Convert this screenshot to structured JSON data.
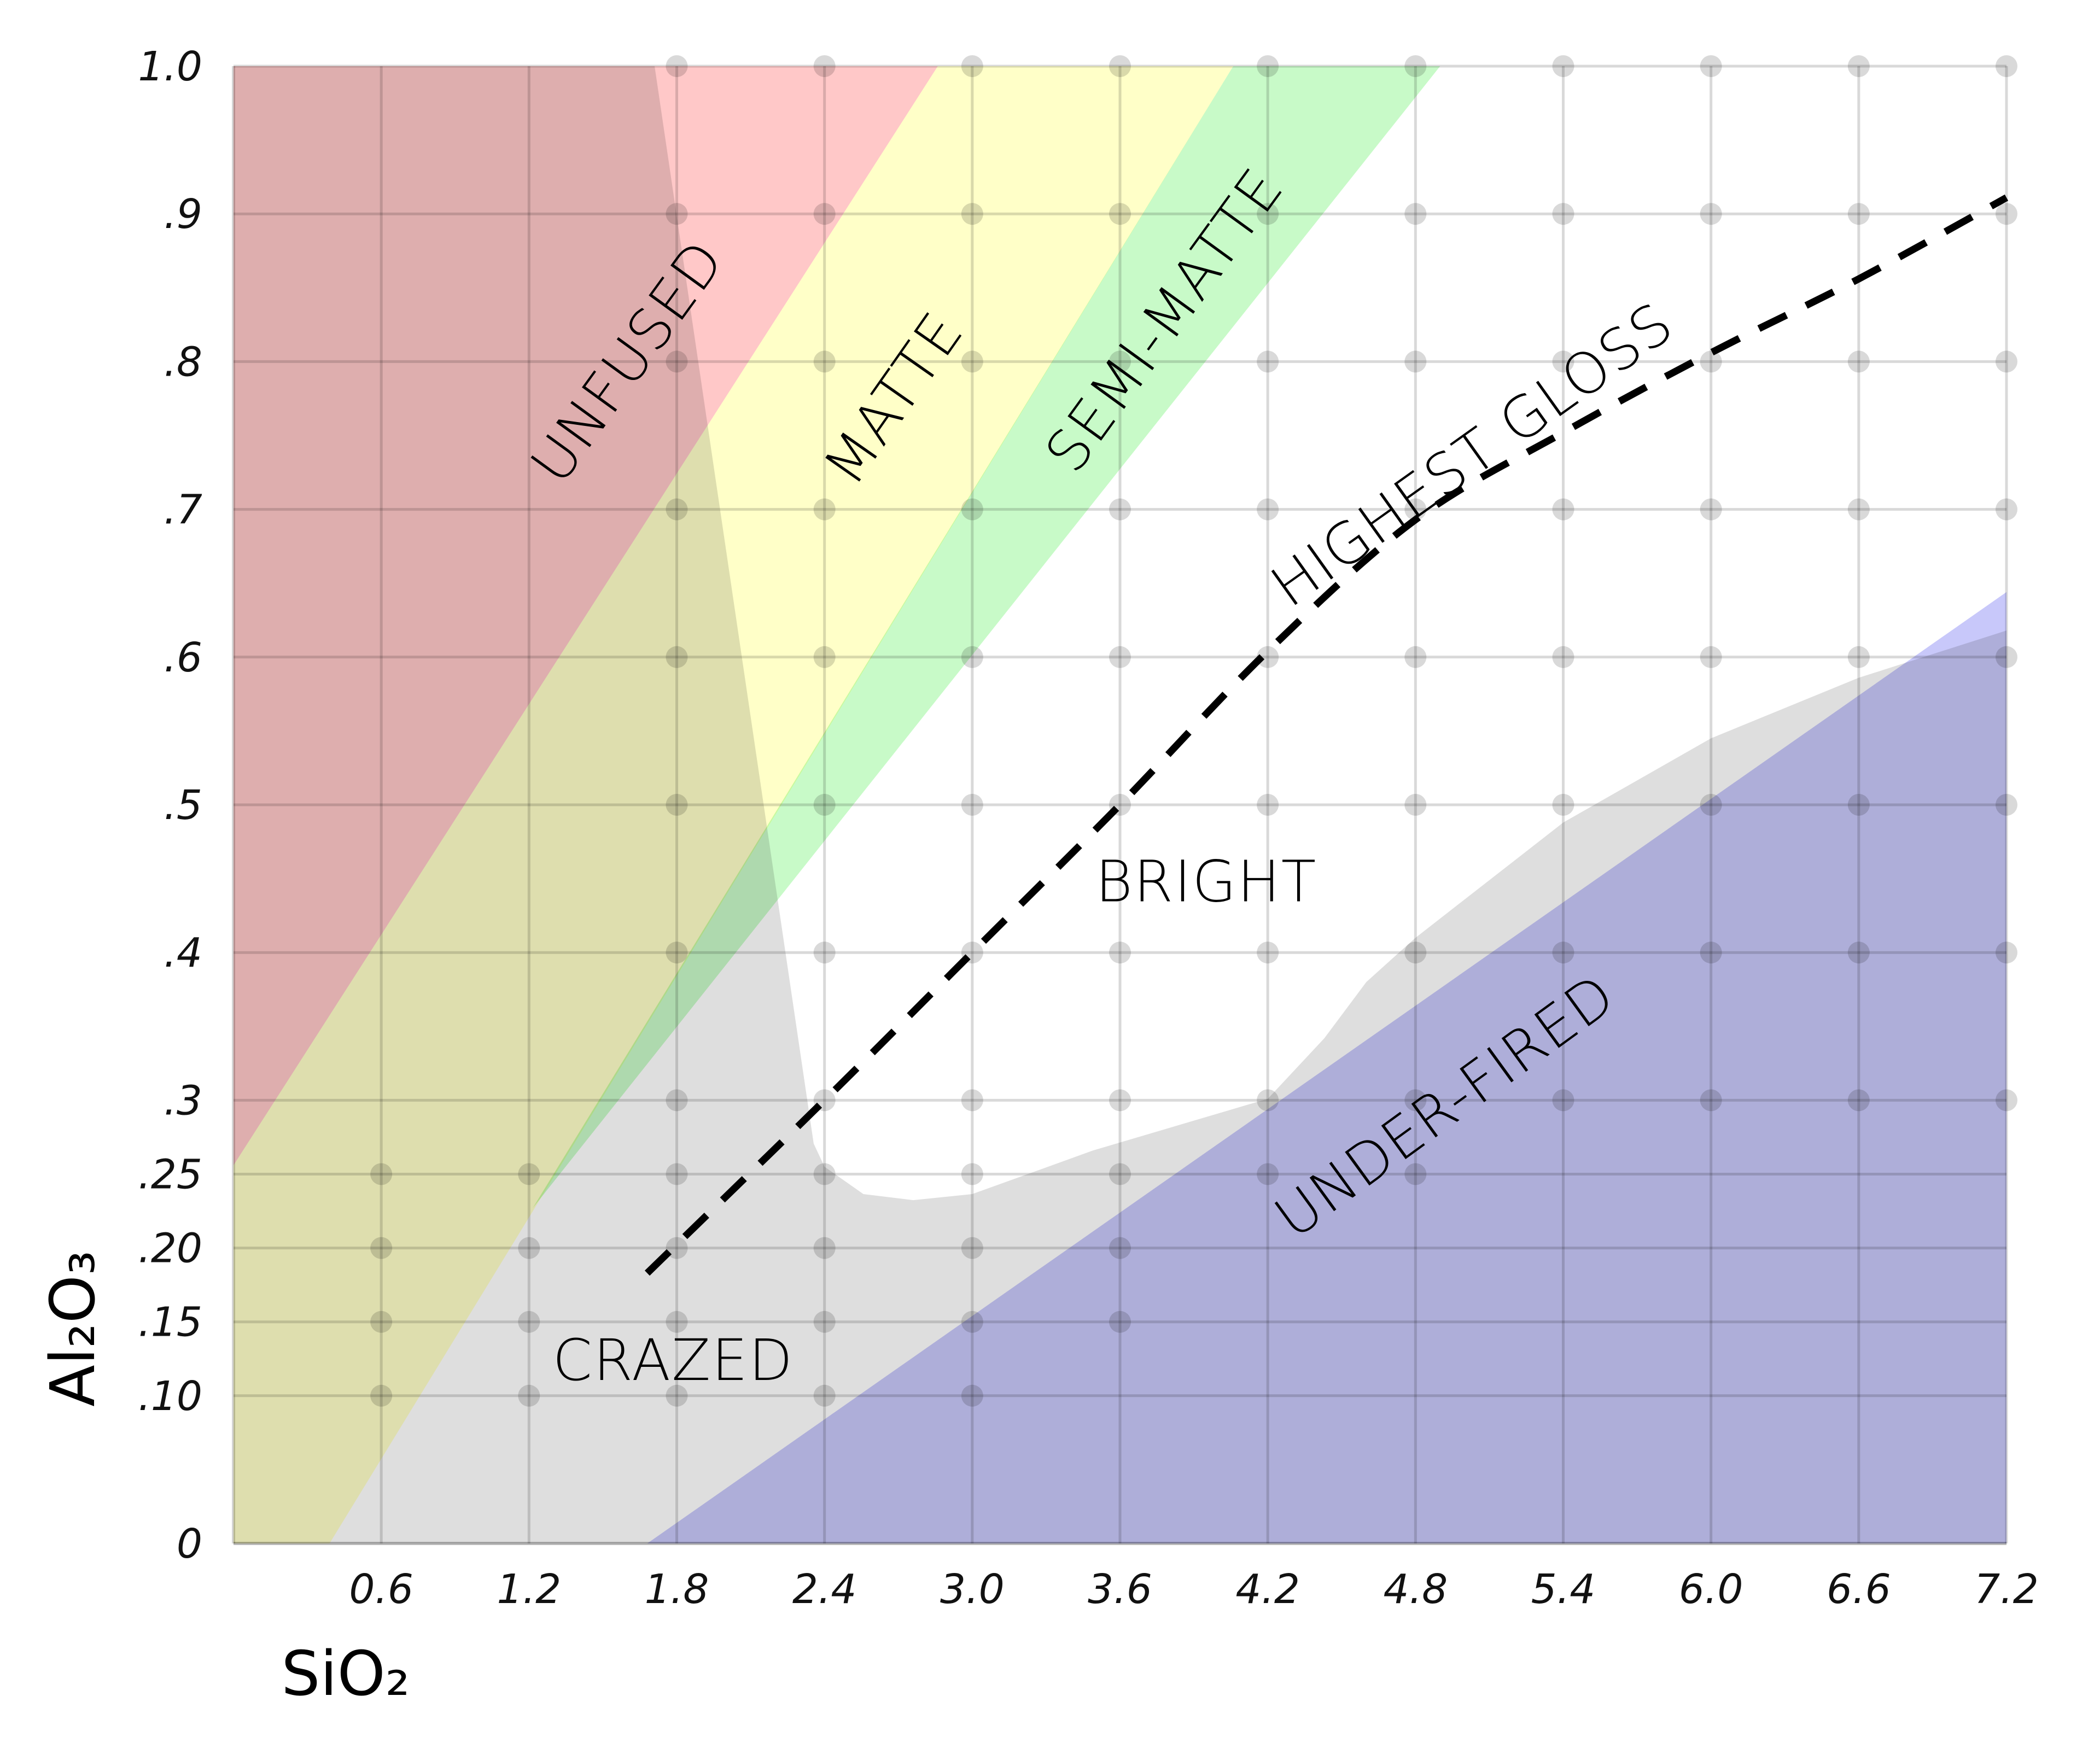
{
  "chart_data": {
    "type": "area",
    "title": "",
    "xlabel": "SiO₂",
    "ylabel": "Al₂O₃",
    "xlim": [
      0,
      7.2
    ],
    "ylim": [
      0,
      1.0
    ],
    "grid": true,
    "legend": null,
    "x_ticks": [
      {
        "value": 0.6,
        "label": "0.6"
      },
      {
        "value": 1.2,
        "label": "1.2"
      },
      {
        "value": 1.8,
        "label": "1.8"
      },
      {
        "value": 2.4,
        "label": "2.4"
      },
      {
        "value": 3.0,
        "label": "3.0"
      },
      {
        "value": 3.6,
        "label": "3.6"
      },
      {
        "value": 4.2,
        "label": "4.2"
      },
      {
        "value": 4.8,
        "label": "4.8"
      },
      {
        "value": 5.4,
        "label": "5.4"
      },
      {
        "value": 6.0,
        "label": "6.0"
      },
      {
        "value": 6.6,
        "label": "6.6"
      },
      {
        "value": 7.2,
        "label": "7.2"
      }
    ],
    "y_ticks": [
      {
        "value": 1.0,
        "label": "1.0"
      },
      {
        "value": 0.9,
        "label": ".9"
      },
      {
        "value": 0.8,
        "label": ".8"
      },
      {
        "value": 0.7,
        "label": ".7"
      },
      {
        "value": 0.6,
        "label": ".6"
      },
      {
        "value": 0.5,
        "label": ".5"
      },
      {
        "value": 0.4,
        "label": ".4"
      },
      {
        "value": 0.3,
        "label": ".3"
      },
      {
        "value": 0.25,
        "label": ".25"
      },
      {
        "value": 0.2,
        "label": ".20"
      },
      {
        "value": 0.15,
        "label": ".15"
      },
      {
        "value": 0.1,
        "label": ".10"
      },
      {
        "value": 0,
        "label": "0"
      }
    ],
    "grid_dots": [
      {
        "y": 1.0,
        "x": [
          1.8,
          2.4,
          3.0,
          3.6,
          4.2,
          4.8,
          5.4,
          6.0,
          6.6,
          7.2
        ]
      },
      {
        "y": 0.9,
        "x": [
          1.8,
          2.4,
          3.0,
          3.6,
          4.2,
          4.8,
          5.4,
          6.0,
          6.6,
          7.2
        ]
      },
      {
        "y": 0.8,
        "x": [
          1.8,
          2.4,
          3.0,
          3.6,
          4.2,
          4.8,
          5.4,
          6.0,
          6.6,
          7.2
        ]
      },
      {
        "y": 0.7,
        "x": [
          1.8,
          2.4,
          3.0,
          3.6,
          4.2,
          4.8,
          5.4,
          6.0,
          6.6,
          7.2
        ]
      },
      {
        "y": 0.6,
        "x": [
          1.8,
          2.4,
          3.0,
          3.6,
          4.2,
          4.8,
          5.4,
          6.0,
          6.6,
          7.2
        ]
      },
      {
        "y": 0.5,
        "x": [
          1.8,
          2.4,
          3.0,
          3.6,
          4.2,
          4.8,
          5.4,
          6.0,
          6.6,
          7.2
        ]
      },
      {
        "y": 0.4,
        "x": [
          1.8,
          2.4,
          3.0,
          3.6,
          4.2,
          4.8,
          5.4,
          6.0,
          6.6,
          7.2
        ]
      },
      {
        "y": 0.3,
        "x": [
          1.8,
          2.4,
          3.0,
          3.6,
          4.2,
          4.8,
          5.4,
          6.0,
          6.6,
          7.2
        ]
      },
      {
        "y": 0.25,
        "x": [
          0.6,
          1.2,
          1.8,
          2.4,
          3.0,
          3.6,
          4.2,
          4.8
        ]
      },
      {
        "y": 0.2,
        "x": [
          0.6,
          1.2,
          1.8,
          2.4,
          3.0,
          3.6
        ]
      },
      {
        "y": 0.15,
        "x": [
          0.6,
          1.2,
          1.8,
          2.4,
          3.0,
          3.6
        ]
      },
      {
        "y": 0.1,
        "x": [
          0.6,
          1.2,
          1.8,
          2.4,
          3.0
        ]
      }
    ],
    "regions": [
      {
        "name": "CRAZED",
        "color": "#000000",
        "opacity": 0.13,
        "points": [
          [
            0,
            0
          ],
          [
            7.2,
            0
          ],
          [
            7.2,
            0.618
          ],
          [
            6.6,
            0.586
          ],
          [
            6.0,
            0.545
          ],
          [
            5.4,
            0.488
          ],
          [
            4.8,
            0.41
          ],
          [
            4.6,
            0.38
          ],
          [
            4.43,
            0.342
          ],
          [
            4.2,
            0.301
          ],
          [
            3.49,
            0.266
          ],
          [
            3.0,
            0.2365
          ],
          [
            2.76,
            0.2324
          ],
          [
            2.558,
            0.2365
          ],
          [
            2.4,
            0.255
          ],
          [
            2.356,
            0.2706
          ],
          [
            1.71,
            1.0
          ],
          [
            0,
            1.0
          ]
        ]
      },
      {
        "name": "UNFUSED",
        "color": "#ffc8c8",
        "opacity": 1,
        "blend": "multiply",
        "points": [
          [
            0,
            0.256
          ],
          [
            2.86,
            1.0
          ],
          [
            0,
            1.0
          ]
        ]
      },
      {
        "name": "MATTE",
        "color": "#ffffc8",
        "opacity": 1,
        "blend": "multiply",
        "points": [
          [
            0,
            0
          ],
          [
            0.39,
            0
          ],
          [
            4.06,
            1.0
          ],
          [
            2.86,
            1.0
          ],
          [
            0,
            0.256
          ]
        ]
      },
      {
        "name": "SEMI-MATTE",
        "color": "#c8fac8",
        "opacity": 1,
        "blend": "multiply",
        "points": [
          [
            1.215,
            0.227
          ],
          [
            4.9,
            1.0
          ],
          [
            4.06,
            1.0
          ]
        ]
      },
      {
        "name": "UNDER-FIRED",
        "color": "#c8c8fa",
        "opacity": 1,
        "blend": "multiply",
        "points": [
          [
            1.68,
            0
          ],
          [
            7.2,
            0
          ],
          [
            7.2,
            0.644
          ]
        ]
      }
    ],
    "highest_gloss_line": {
      "style": "dashed",
      "color": "#000000",
      "points": [
        [
          1.68,
          0.183
        ],
        [
          2.4,
          0.3
        ],
        [
          3.0,
          0.4
        ],
        [
          3.6,
          0.5
        ],
        [
          4.2,
          0.604
        ],
        [
          4.8,
          0.693
        ],
        [
          5.4,
          0.752
        ],
        [
          6.0,
          0.806
        ],
        [
          6.6,
          0.856
        ],
        [
          7.2,
          0.911
        ]
      ]
    },
    "annotations": [
      {
        "text": "UNFUSED",
        "x": 1.6,
        "y": 0.8,
        "angle": -54
      },
      {
        "text": "MATTE",
        "x": 2.68,
        "y": 0.775,
        "angle": -55
      },
      {
        "text": "SEMI-MATTE",
        "x": 3.78,
        "y": 0.828,
        "angle": -54
      },
      {
        "text": "HIGHEST GLOSS",
        "x": 5.03,
        "y": 0.737,
        "angle": -35.5
      },
      {
        "text": "BRIGHT",
        "x": 3.95,
        "y": 0.448,
        "angle": 0
      },
      {
        "text": "CRAZED",
        "x": 1.785,
        "y": 0.124,
        "angle": 0
      },
      {
        "text": "UNDER-FIRED",
        "x": 4.92,
        "y": 0.296,
        "angle": -36
      }
    ]
  },
  "axes": {
    "x_title": "SiO₂",
    "y_title": "Al₂O₃"
  }
}
